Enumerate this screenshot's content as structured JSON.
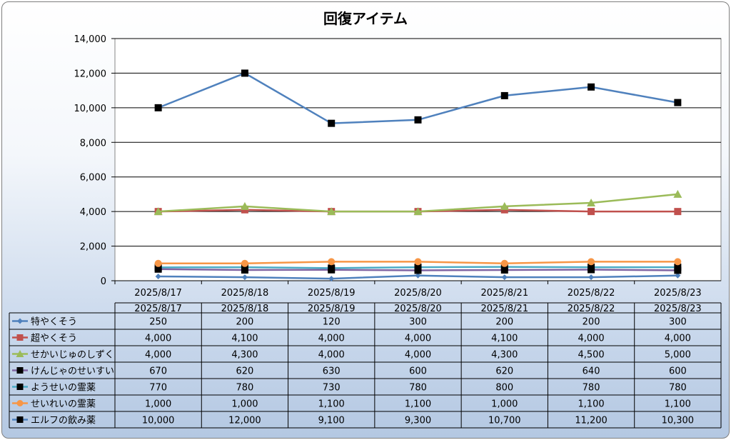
{
  "chart_data": {
    "type": "line",
    "title": "回復アイテム",
    "categories": [
      "2025/8/17",
      "2025/8/18",
      "2025/8/19",
      "2025/8/20",
      "2025/8/21",
      "2025/8/22",
      "2025/8/23"
    ],
    "ylim": [
      0,
      14000
    ],
    "yticks": [
      "0",
      "2,000",
      "4,000",
      "6,000",
      "8,000",
      "10,000",
      "12,000",
      "14,000"
    ],
    "grid": true,
    "legend": "data-table",
    "series": [
      {
        "name": "特やくそう",
        "values": [
          250,
          200,
          120,
          300,
          200,
          200,
          300
        ],
        "labels": [
          "250",
          "200",
          "120",
          "300",
          "200",
          "200",
          "300"
        ],
        "color": "#4f81bd",
        "marker": "diamond",
        "marker_color": "#4f81bd"
      },
      {
        "name": "超やくそう",
        "values": [
          4000,
          4100,
          4000,
          4000,
          4100,
          4000,
          4000
        ],
        "labels": [
          "4,000",
          "4,100",
          "4,000",
          "4,000",
          "4,100",
          "4,000",
          "4,000"
        ],
        "color": "#c0504d",
        "marker": "square",
        "marker_color": "#c0504d"
      },
      {
        "name": "せかいじゅのしずく",
        "values": [
          4000,
          4300,
          4000,
          4000,
          4300,
          4500,
          5000
        ],
        "labels": [
          "4,000",
          "4,300",
          "4,000",
          "4,000",
          "4,300",
          "4,500",
          "5,000"
        ],
        "color": "#9bbb59",
        "marker": "triangle",
        "marker_color": "#9bbb59"
      },
      {
        "name": "けんじゃのせいすい",
        "values": [
          670,
          620,
          630,
          600,
          620,
          640,
          600
        ],
        "labels": [
          "670",
          "620",
          "630",
          "600",
          "620",
          "640",
          "600"
        ],
        "color": "#8064a2",
        "marker": "square",
        "marker_color": "#000000"
      },
      {
        "name": "ようせいの霊薬",
        "values": [
          770,
          780,
          730,
          780,
          800,
          780,
          780
        ],
        "labels": [
          "770",
          "780",
          "730",
          "780",
          "800",
          "780",
          "780"
        ],
        "color": "#4bacc6",
        "marker": "square",
        "marker_color": "#000000"
      },
      {
        "name": "せいれいの霊薬",
        "values": [
          1000,
          1000,
          1100,
          1100,
          1000,
          1100,
          1100
        ],
        "labels": [
          "1,000",
          "1,000",
          "1,100",
          "1,100",
          "1,000",
          "1,100",
          "1,100"
        ],
        "color": "#f79646",
        "marker": "circle",
        "marker_color": "#f79646"
      },
      {
        "name": "エルフの飲み薬",
        "values": [
          10000,
          12000,
          9100,
          9300,
          10700,
          11200,
          10300
        ],
        "labels": [
          "10,000",
          "12,000",
          "9,100",
          "9,300",
          "10,700",
          "11,200",
          "10,300"
        ],
        "color": "#4f81bd",
        "marker": "square",
        "marker_color": "#000000"
      }
    ]
  }
}
